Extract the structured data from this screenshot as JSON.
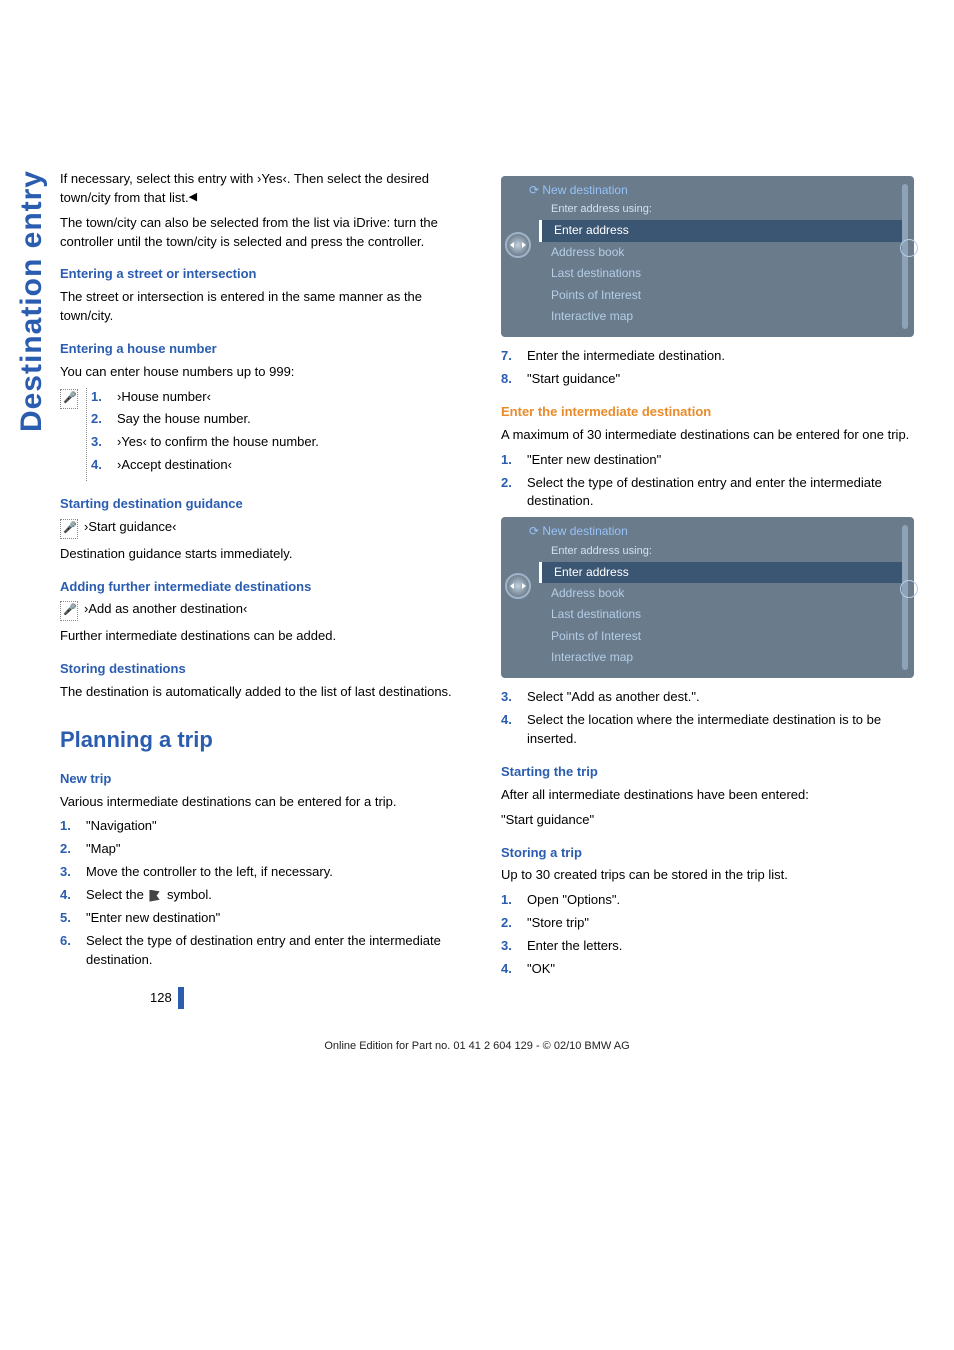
{
  "sideTab": "Destination entry",
  "col1": {
    "intro1": "If necessary, select this entry with ›Yes‹. Then select the desired town/city from that list.",
    "intro2": "The town/city can also be selected from the list via iDrive: turn the controller until the town/city is selected and press the controller.",
    "h_street": "Entering a street or intersection",
    "p_street": "The street or intersection is entered in the same manner as the town/city.",
    "h_house": "Entering a house number",
    "p_house": "You can enter house numbers up to 999:",
    "house_steps": [
      "›House number‹",
      "Say the house number.",
      "›Yes‹ to confirm the house number.",
      "›Accept destination‹"
    ],
    "h_startdest": "Starting destination guidance",
    "voice_start": "›Start guidance‹",
    "p_startdest": "Destination guidance starts immediately.",
    "h_adding": "Adding further intermediate destinations",
    "voice_add": "›Add as another destination‹",
    "p_adding": "Further intermediate destinations can be added.",
    "h_storing": "Storing destinations",
    "p_storing": "The destination is automatically added to the list of last destinations.",
    "h_plan": "Planning a trip",
    "h_newtrip": "New trip",
    "p_newtrip": "Various intermediate destinations can be entered for a trip.",
    "newtrip_steps": [
      "\"Navigation\"",
      "\"Map\"",
      "Move the controller to the left, if necessary.",
      "Select the ",
      "\"Enter new destination\"",
      "Select the type of destination entry and enter the intermediate destination."
    ],
    "select_sym_suffix": " symbol."
  },
  "col2": {
    "screenshot": {
      "header": "New destination",
      "sub": "Enter address using:",
      "items": [
        "Enter address",
        "Address book",
        "Last destinations",
        "Points of Interest",
        "Interactive map"
      ]
    },
    "steps_7_8": [
      "Enter the intermediate destination.",
      "\"Start guidance\""
    ],
    "h_enter_int": "Enter the intermediate destination",
    "p_enter_int": "A maximum of 30 intermediate destinations can be entered for one trip.",
    "enter_steps": [
      "\"Enter new destination\"",
      "Select the type of destination entry and enter the intermediate destination."
    ],
    "steps_3_4": [
      "Select \"Add as another dest.\".",
      "Select the location where the intermediate destination is to be inserted."
    ],
    "h_startrip": "Starting the trip",
    "p_startrip1": "After all intermediate destinations have been entered:",
    "p_startrip2": "\"Start guidance\"",
    "h_storetrip": "Storing a trip",
    "p_storetrip": "Up to 30 created trips can be stored in the trip list.",
    "store_steps": [
      "Open \"Options\".",
      "\"Store trip\"",
      "Enter the letters.",
      "\"OK\""
    ]
  },
  "pageNum": "128",
  "footer": "Online Edition for Part no. 01 41 2 604 129 - © 02/10 BMW AG"
}
